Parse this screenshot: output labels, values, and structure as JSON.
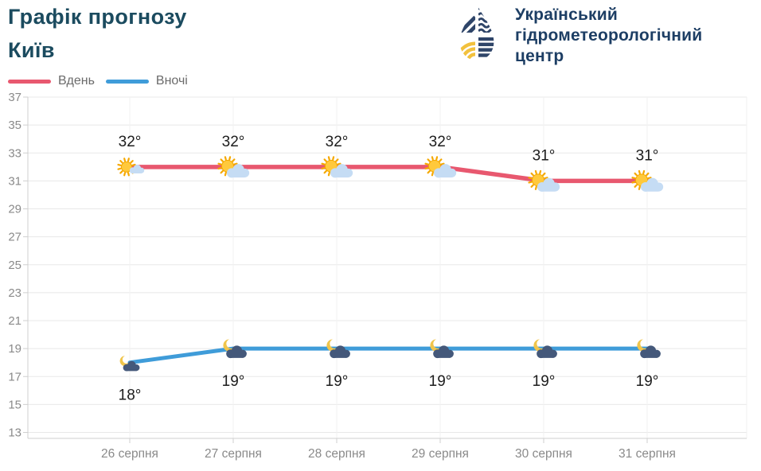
{
  "header": {
    "title_line1": "Графік прогнозу",
    "title_line2": "Київ",
    "org": {
      "line1": "Український",
      "line2": "гідрометеорологічний",
      "line3": "центр"
    }
  },
  "legend": [
    {
      "label": "Вдень",
      "color": "#e8586f"
    },
    {
      "label": "Вночі",
      "color": "#3f9cd9"
    }
  ],
  "chart_data": {
    "type": "line",
    "title": "Графік прогнозу — Київ",
    "categories": [
      "26 серпня",
      "27 серпня",
      "28 серпня",
      "29 серпня",
      "30 серпня",
      "31 серпня"
    ],
    "series": [
      {
        "name": "Вдень",
        "color": "#e8586f",
        "values": [
          32,
          32,
          32,
          32,
          31,
          31
        ],
        "icon": "sun-cloud",
        "label_position": "above"
      },
      {
        "name": "Вночі",
        "color": "#3f9cd9",
        "values": [
          18,
          19,
          19,
          19,
          19,
          19
        ],
        "icon": "moon-cloud",
        "label_position": "below"
      }
    ],
    "unit": "°",
    "ylim": [
      13,
      37
    ],
    "ytick_step": 2,
    "grid": true,
    "legend_position": "top-left"
  },
  "colors": {
    "title": "#1b4b5f",
    "org_text": "#1d3e64",
    "logo_navy": "#2f4569",
    "logo_yellow": "#f2c13d",
    "grid": "#e8e8e8",
    "grid_vertical": "#f2f2f2",
    "axis": "#cfcfcf",
    "tick_label": "#8a8a8a",
    "temp_label": "#1d1d1d",
    "legend_label": "#6b6b6b",
    "sun_fill": "#ffc93c",
    "sun_ray": "#f5a800",
    "day_cloud": "#c5dcf4",
    "moon_fill": "#f0c54b",
    "night_cloud": "#44587a",
    "background": "#ffffff"
  }
}
